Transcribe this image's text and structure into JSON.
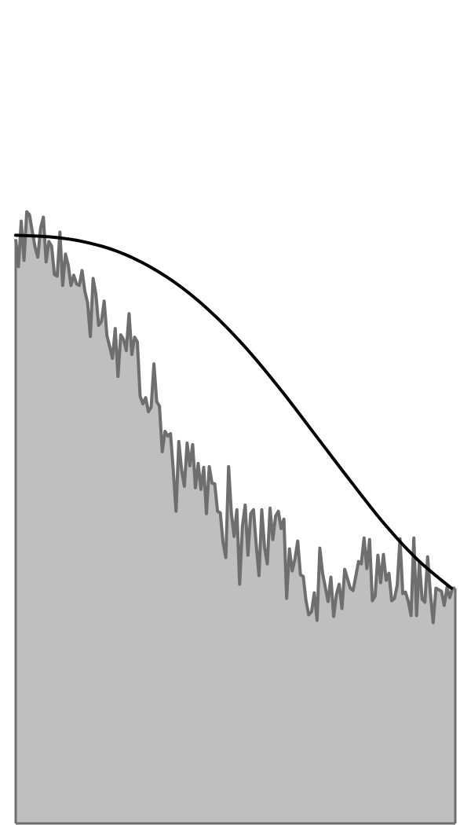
{
  "chart_data": {
    "type": "area",
    "title": "",
    "xlabel": "",
    "ylabel": "",
    "grid": false,
    "legend": "none",
    "x_range": [
      0,
      160
    ],
    "y_range": [
      0,
      1050
    ],
    "colors": {
      "area_fill": "#bfbfbf",
      "noisy_line": "#6e6e6e",
      "smooth_line": "#000000",
      "background": "#ffffff"
    },
    "series": [
      {
        "kind": "noisy-area",
        "values": [
          745,
          710,
          768,
          718,
          780,
          776,
          755,
          735,
          722,
          759,
          773,
          716,
          742,
          736,
          700,
          698,
          754,
          686,
          726,
          712,
          686,
          699,
          688,
          686,
          705,
          679,
          664,
          621,
          695,
          675,
          635,
          640,
          666,
          622,
          608,
          593,
          631,
          570,
          623,
          617,
          603,
          650,
          598,
          620,
          614,
          545,
          535,
          543,
          525,
          531,
          586,
          538,
          532,
          474,
          500,
          494,
          497,
          450,
          398,
          487,
          451,
          430,
          485,
          456,
          483,
          428,
          459,
          426,
          454,
          395,
          455,
          434,
          433,
          398,
          396,
          358,
          339,
          455,
          396,
          366,
          400,
          305,
          379,
          406,
          342,
          395,
          400,
          355,
          316,
          400,
          352,
          331,
          402,
          362,
          392,
          398,
          376,
          388,
          287,
          350,
          322,
          337,
          360,
          317,
          315,
          284,
          266,
          270,
          294,
          259,
          351,
          319,
          301,
          283,
          314,
          264,
          292,
          305,
          274,
          324,
          312,
          300,
          297,
          315,
          334,
          331,
          364,
          325,
          362,
          284,
          290,
          342,
          307,
          343,
          310,
          319,
          284,
          287,
          304,
          363,
          293,
          295,
          283,
          265,
          364,
          265,
          334,
          286,
          282,
          340,
          293,
          256,
          300,
          298,
          296,
          278,
          301,
          288,
          300,
          300
        ]
      },
      {
        "kind": "smooth-trend",
        "values": [
          750,
          748,
          742,
          730,
          710,
          682,
          645,
          600,
          548,
          492,
          436,
          382,
          336,
          300
        ]
      }
    ]
  }
}
